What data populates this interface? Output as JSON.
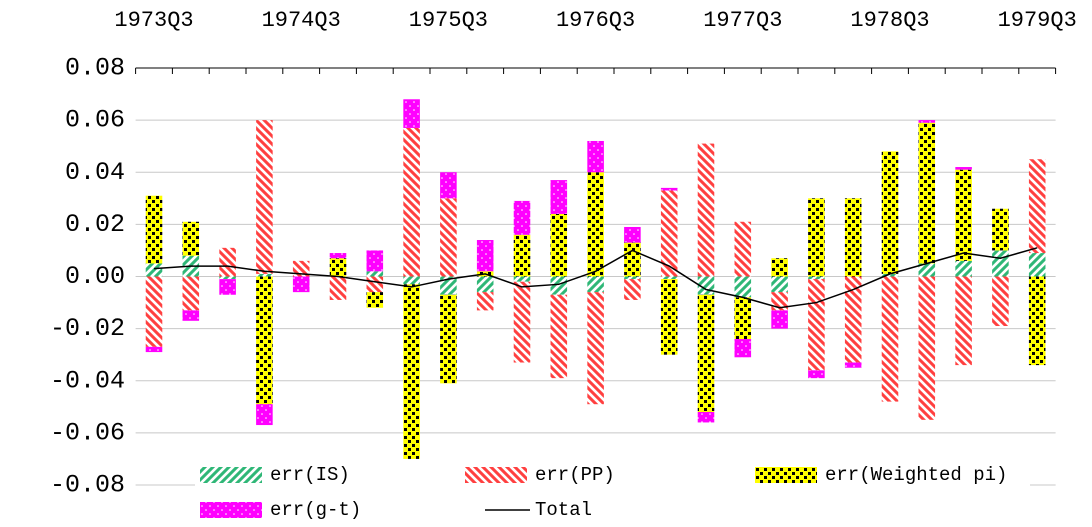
{
  "chart_data": {
    "type": "bar",
    "stacked": true,
    "categories": [
      "1973Q3",
      null,
      null,
      null,
      "1974Q3",
      null,
      null,
      null,
      "1975Q3",
      null,
      null,
      null,
      "1976Q3",
      null,
      null,
      null,
      "1977Q3",
      null,
      null,
      null,
      "1978Q3",
      null,
      null,
      null,
      "1979Q3"
    ],
    "ylim": [
      -0.08,
      0.08
    ],
    "yticks": [
      -0.08,
      -0.06,
      -0.04,
      -0.02,
      {
        "value": 0,
        "label": "0.00"
      },
      0.02,
      0.04,
      0.06,
      0.08
    ],
    "grid": true,
    "series": [
      {
        "name": "err(IS)",
        "color": "#2fb777",
        "values": [
          0.005,
          0.008,
          -0.001,
          0.001,
          0,
          0,
          0.002,
          -0.003,
          -0.007,
          -0.006,
          -0.002,
          -0.007,
          -0.006,
          -0.001,
          -0.001,
          -0.007,
          -0.008,
          -0.006,
          -0.001,
          0,
          0.001,
          0.005,
          0.006,
          0.01,
          0.009
        ]
      },
      {
        "name": "err(PP)",
        "color": "#ff4040",
        "values": [
          -0.027,
          -0.013,
          0.011,
          0.059,
          0.006,
          -0.009,
          -0.006,
          0.057,
          0.03,
          -0.007,
          -0.031,
          -0.032,
          -0.043,
          -0.008,
          0.033,
          0.051,
          0.021,
          -0.007,
          -0.035,
          -0.033,
          -0.048,
          -0.055,
          -0.034,
          -0.019,
          0.036
        ]
      },
      {
        "name": "err(Weighted pi)",
        "color": "#ffff00",
        "values": [
          0.026,
          0.013,
          0,
          -0.049,
          0,
          0.007,
          -0.006,
          -0.067,
          -0.034,
          0.002,
          0.016,
          0.024,
          0.04,
          0.013,
          -0.029,
          -0.045,
          -0.016,
          0.007,
          0.03,
          0.03,
          0.047,
          0.054,
          0.035,
          0.016,
          -0.034
        ]
      },
      {
        "name": "err(g-t)",
        "color": "#ff00ff",
        "values": [
          -0.002,
          -0.004,
          -0.006,
          -0.008,
          -0.006,
          0.002,
          0.008,
          0.011,
          0.01,
          0.012,
          0.013,
          0.013,
          0.012,
          0.006,
          0.001,
          -0.004,
          -0.007,
          -0.007,
          -0.003,
          -0.002,
          0,
          0.001,
          0.001,
          0,
          0
        ]
      },
      {
        "name": "Total",
        "color": "#000000",
        "type": "line",
        "values": [
          0.003,
          0.004,
          0.004,
          0.002,
          0.001,
          0.0,
          -0.002,
          -0.004,
          -0.001,
          0.001,
          -0.004,
          -0.003,
          0.002,
          0.01,
          0.004,
          -0.005,
          -0.008,
          -0.012,
          -0.01,
          -0.005,
          0.001,
          0.005,
          0.009,
          0.007,
          0.011
        ]
      }
    ]
  }
}
